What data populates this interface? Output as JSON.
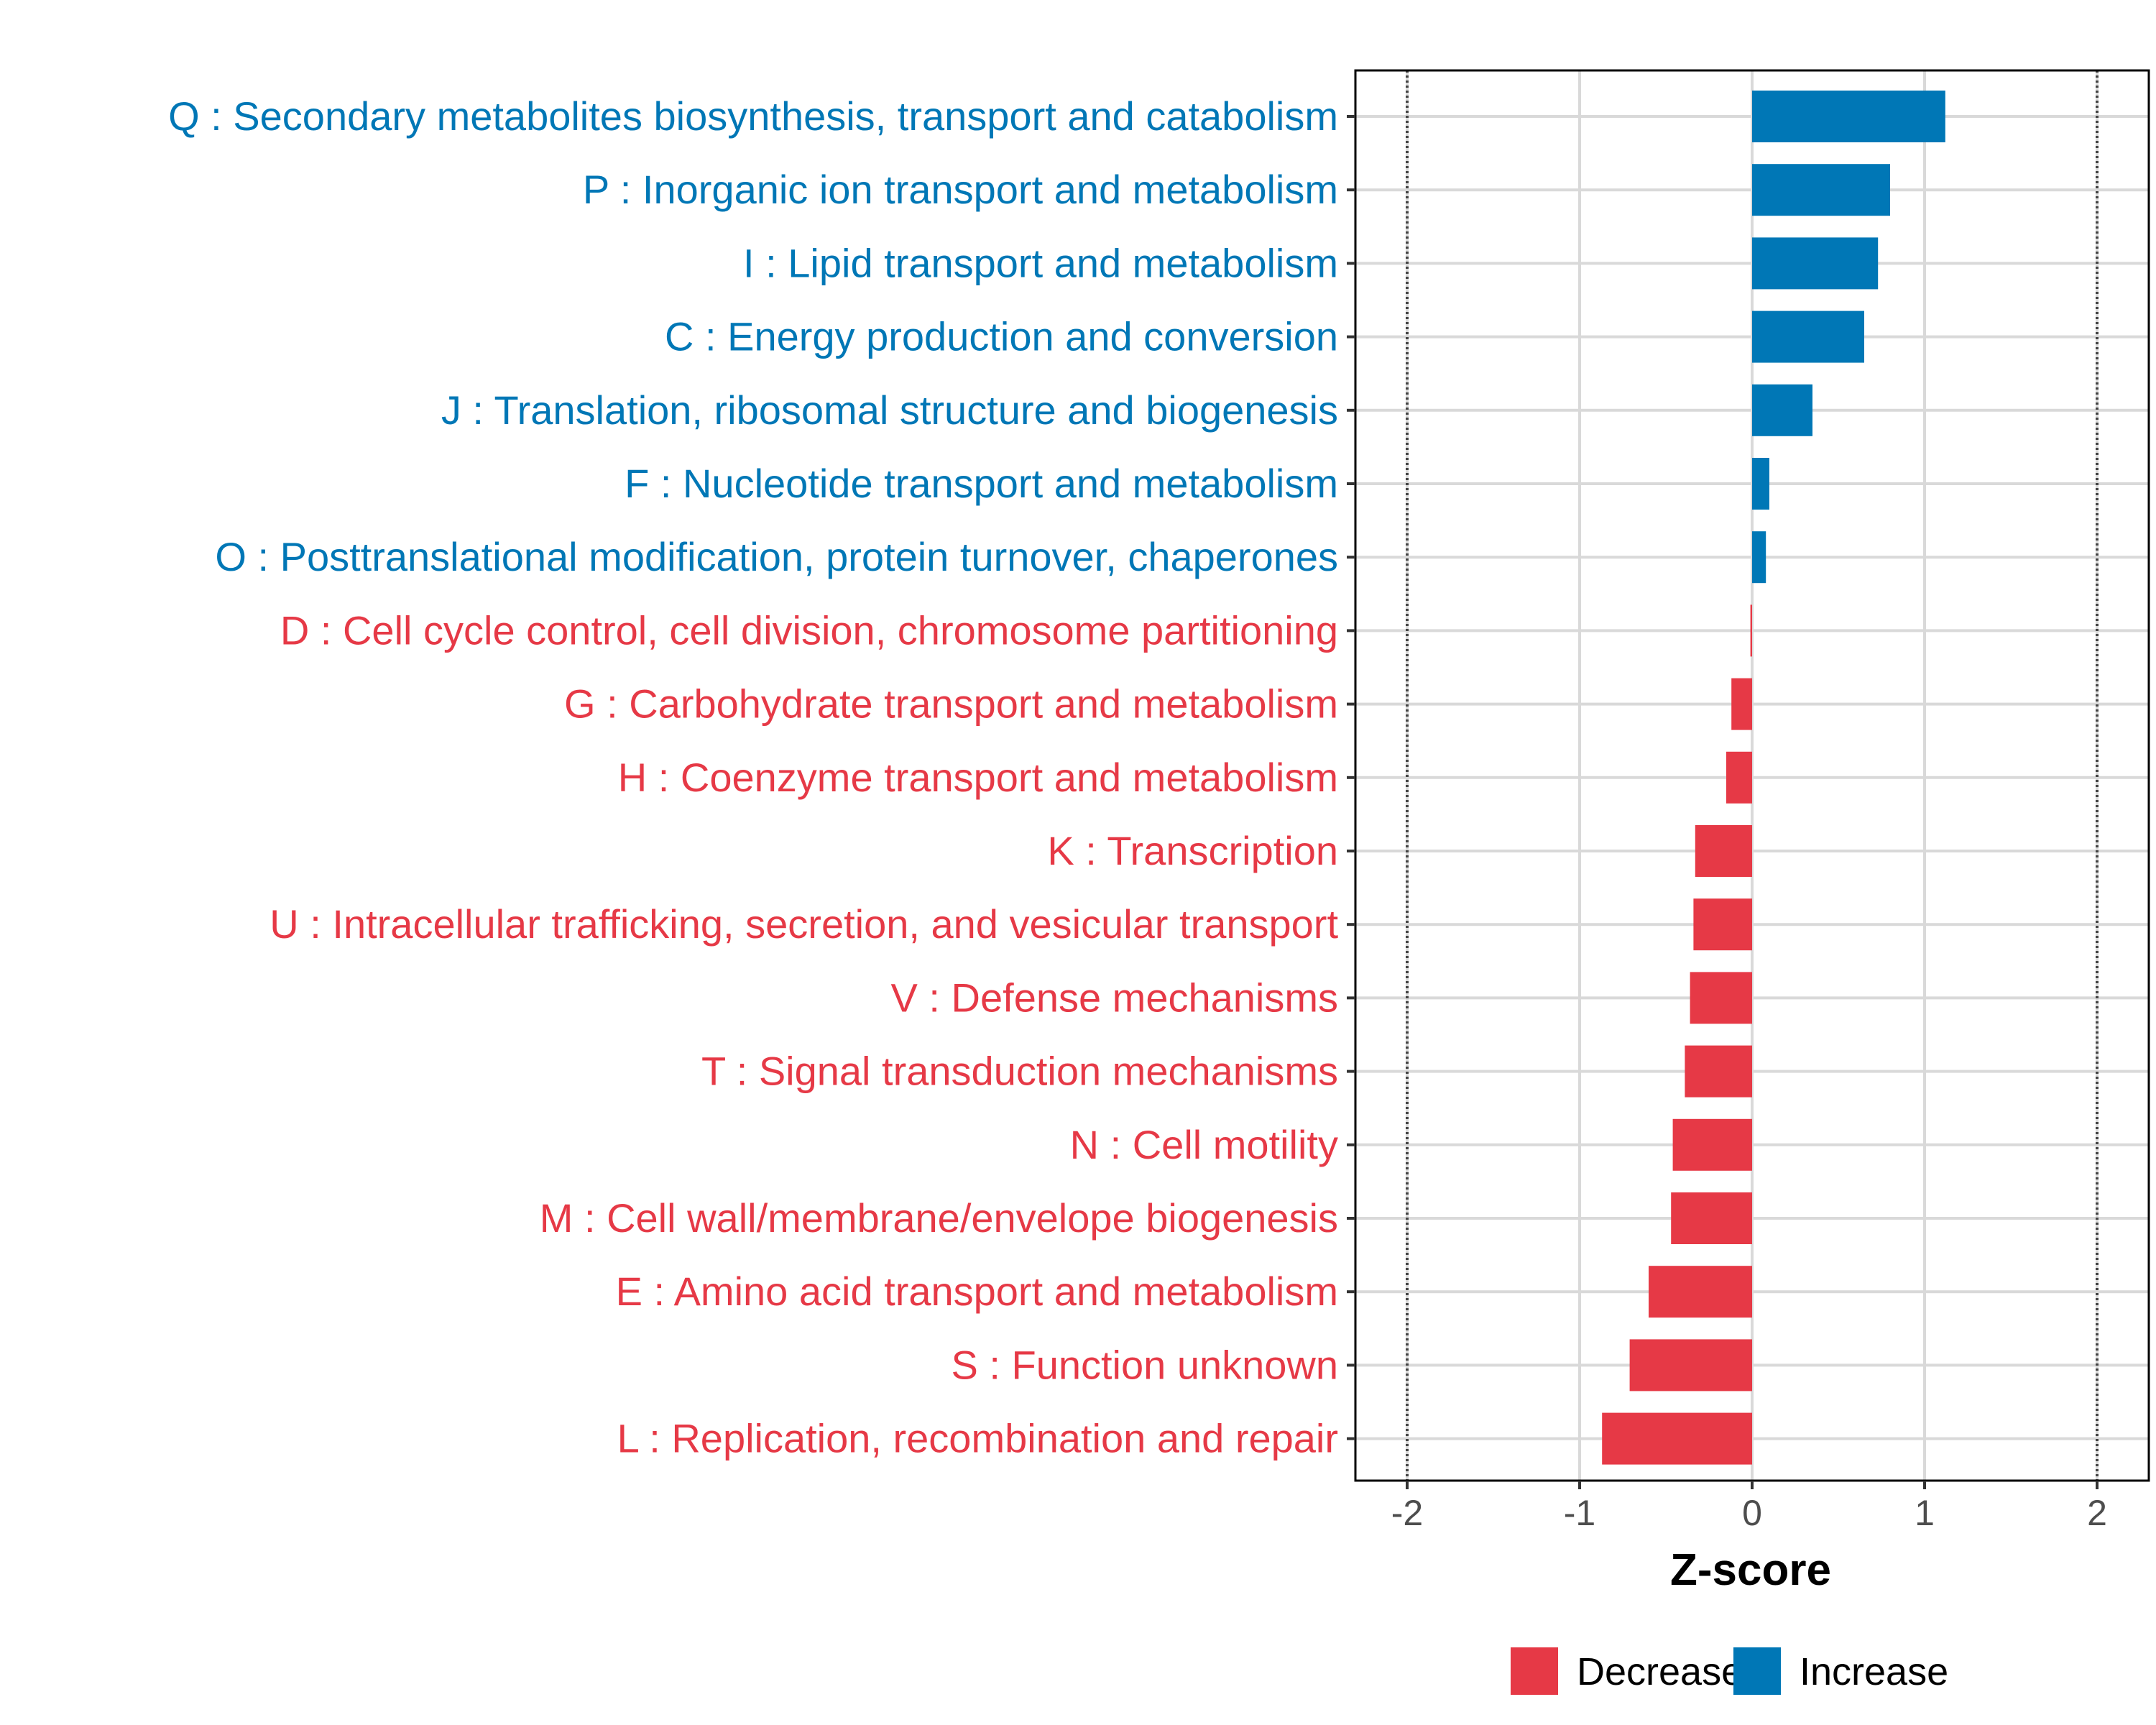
{
  "chart_data": {
    "type": "bar",
    "orientation": "horizontal",
    "xlabel": "Z-score",
    "ylabel": "",
    "xlim": [
      -2.3,
      2.3
    ],
    "xticks": [
      -2,
      -1,
      0,
      1,
      2
    ],
    "tick_labels": [
      "-2",
      "-1",
      "0",
      "1",
      "2"
    ],
    "reference_lines": [
      -2,
      2
    ],
    "grid": true,
    "categories": [
      "Q : Secondary metabolites biosynthesis, transport and catabolism",
      "P : Inorganic ion transport and metabolism",
      "I : Lipid transport and metabolism",
      "C : Energy production and conversion",
      "J : Translation, ribosomal structure and biogenesis",
      "F : Nucleotide transport and metabolism",
      "O : Posttranslational modification, protein turnover, chaperones",
      "D : Cell cycle control, cell division, chromosome partitioning",
      "G : Carbohydrate transport and metabolism",
      "H : Coenzyme transport and metabolism",
      "K : Transcription",
      "U : Intracellular trafficking, secretion, and vesicular transport",
      "V : Defense mechanisms",
      "T : Signal transduction mechanisms",
      "N : Cell motility",
      "M : Cell wall/membrane/envelope biogenesis",
      "E : Amino acid transport and metabolism",
      "S : Function unknown",
      "L : Replication, recombination and repair"
    ],
    "values": [
      1.12,
      0.8,
      0.73,
      0.65,
      0.35,
      0.1,
      0.08,
      -0.01,
      -0.12,
      -0.15,
      -0.33,
      -0.34,
      -0.36,
      -0.39,
      -0.46,
      -0.47,
      -0.6,
      -0.71,
      -0.87
    ],
    "groups": [
      "Increase",
      "Increase",
      "Increase",
      "Increase",
      "Increase",
      "Increase",
      "Increase",
      "Decrease",
      "Decrease",
      "Decrease",
      "Decrease",
      "Decrease",
      "Decrease",
      "Decrease",
      "Decrease",
      "Decrease",
      "Decrease",
      "Decrease",
      "Decrease"
    ],
    "legend": {
      "position": "bottom-right",
      "items": [
        {
          "label": "Decrease",
          "color": "#e63946"
        },
        {
          "label": "Increase",
          "color": "#0077b6"
        }
      ]
    },
    "colors": {
      "Decrease": "#e63946",
      "Increase": "#0077b6"
    }
  }
}
